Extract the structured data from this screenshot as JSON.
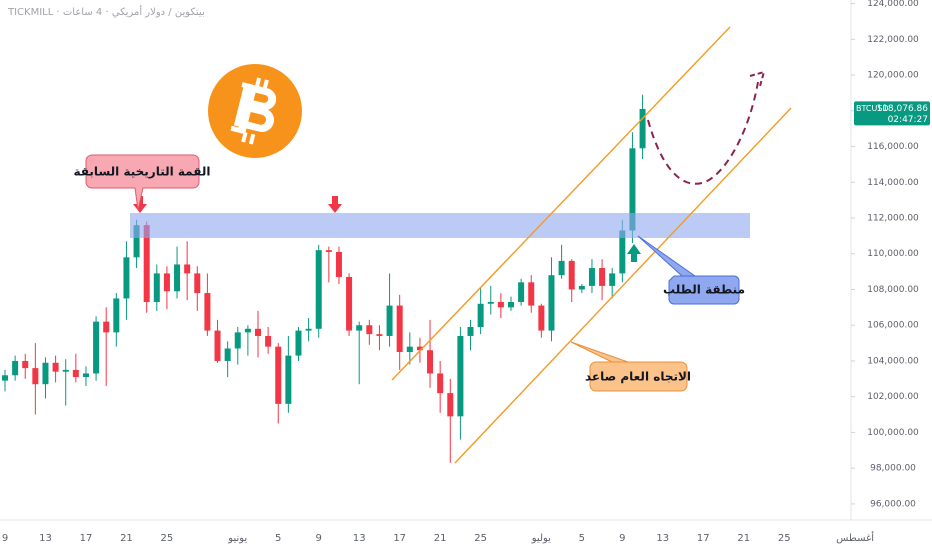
{
  "chart_data": {
    "type": "candlestick",
    "title": "TICKMILL · بيتكوين / دولار أمريكي · 4 ساعات",
    "symbol": "BTCUSD",
    "last_price": {
      "value": 118076.86,
      "label": "118,076.86"
    },
    "countdown": "02:47:27",
    "annotations": [
      "القمة التاريخية السابقة",
      "منطقة الطلب",
      "الاتجاه العام صاعد"
    ],
    "up_color": "#089981",
    "down_color": "#f23645",
    "ylim": [
      95100,
      124200
    ],
    "yticks": [
      {
        "value": 96000,
        "label": "96,000.00"
      },
      {
        "value": 98000,
        "label": "98,000.00"
      },
      {
        "value": 100000,
        "label": "100,000.00"
      },
      {
        "value": 102000,
        "label": "102,000.00"
      },
      {
        "value": 104000,
        "label": "104,000.00"
      },
      {
        "value": 106000,
        "label": "106,000.00"
      },
      {
        "value": 108000,
        "label": "108,000.00"
      },
      {
        "value": 110000,
        "label": "110,000.00"
      },
      {
        "value": 112000,
        "label": "112,000.00"
      },
      {
        "value": 114000,
        "label": "114,000.00"
      },
      {
        "value": 116000,
        "label": "116,000.00"
      },
      {
        "value": 118000,
        "label": "118,000.00"
      },
      {
        "value": 120000,
        "label": "120,000.00"
      },
      {
        "value": 122000,
        "label": "122,000.00"
      },
      {
        "value": 124000,
        "label": "124,000.00"
      }
    ],
    "categories": [
      "9",
      null,
      null,
      null,
      "13",
      null,
      null,
      null,
      "17",
      null,
      null,
      null,
      "21",
      null,
      null,
      null,
      "25",
      null,
      null,
      null,
      null,
      null,
      null,
      "يونيو",
      null,
      null,
      null,
      "5",
      null,
      null,
      null,
      "9",
      null,
      null,
      null,
      "13",
      null,
      null,
      null,
      "17",
      null,
      null,
      null,
      "21",
      null,
      null,
      null,
      "25",
      null,
      null,
      null,
      null,
      null,
      "يوليو",
      null,
      null,
      null,
      "5",
      null,
      null,
      null,
      "9",
      null,
      null,
      null,
      "13",
      null,
      null,
      null,
      "17",
      null,
      null,
      null,
      "21",
      null,
      null,
      null,
      "25",
      null,
      null,
      null,
      null,
      null,
      null,
      "أغسطس"
    ],
    "open": [
      102900,
      103200,
      104000,
      103600,
      102700,
      103900,
      103400,
      103500,
      103100,
      103300,
      106200,
      105600,
      107500,
      109800,
      111600,
      107300,
      108900,
      107900,
      109400,
      108900,
      107800,
      105700,
      104000,
      104700,
      105600,
      105800,
      105400,
      104800,
      101600,
      104300,
      105700,
      105800,
      110200,
      110100,
      108700,
      105700,
      106000,
      105500,
      105400,
      107100,
      104500,
      104800,
      104600,
      103300,
      102200,
      100900,
      105400,
      105900,
      107200,
      107300,
      107000,
      107300,
      108400,
      107100,
      105700,
      108800,
      109600,
      108000,
      108200,
      109200,
      108200,
      108900,
      111300,
      115900,
      null,
      null,
      null,
      null,
      null,
      null,
      null,
      null,
      null,
      null,
      null,
      null,
      null,
      null,
      null,
      null,
      null,
      null,
      null,
      null,
      null
    ],
    "high": [
      103500,
      104300,
      104400,
      105000,
      104200,
      104300,
      104100,
      104400,
      103700,
      106500,
      107000,
      107800,
      110700,
      111900,
      111800,
      109400,
      109300,
      110400,
      110700,
      109300,
      108900,
      106300,
      105100,
      105900,
      106000,
      106800,
      105900,
      105000,
      105400,
      105900,
      106400,
      110500,
      110400,
      110400,
      108900,
      106200,
      106300,
      106000,
      108900,
      107700,
      105600,
      105300,
      106300,
      104000,
      103000,
      105900,
      106300,
      108100,
      108200,
      107800,
      107600,
      108600,
      108800,
      107200,
      109800,
      110500,
      109700,
      108300,
      109700,
      109700,
      109200,
      111900,
      116800,
      118900,
      null,
      null,
      null,
      null,
      null,
      null,
      null,
      null,
      null,
      null,
      null,
      null,
      null,
      null,
      null,
      null,
      null,
      null,
      null,
      null,
      null
    ],
    "low": [
      102300,
      102900,
      103000,
      101000,
      101900,
      102800,
      101500,
      102800,
      102600,
      102900,
      102600,
      104800,
      106300,
      109200,
      106700,
      106800,
      106900,
      107500,
      107400,
      106800,
      105400,
      103900,
      103100,
      103800,
      104300,
      104200,
      104400,
      100500,
      101100,
      104000,
      105100,
      105300,
      108400,
      108300,
      105400,
      102700,
      104900,
      104600,
      104800,
      103500,
      103800,
      103900,
      102500,
      101100,
      98300,
      99600,
      104600,
      105500,
      106600,
      106400,
      106800,
      107100,
      106700,
      105300,
      105100,
      108600,
      107300,
      107800,
      107800,
      107400,
      107500,
      108400,
      110600,
      115300,
      null,
      null,
      null,
      null,
      null,
      null,
      null,
      null,
      null,
      null,
      null,
      null,
      null,
      null,
      null,
      null,
      null,
      null,
      null,
      null,
      null
    ],
    "close": [
      103200,
      104000,
      103600,
      102700,
      103900,
      103400,
      103500,
      103100,
      103300,
      106200,
      105600,
      107500,
      109800,
      111600,
      107300,
      108900,
      107900,
      109400,
      108900,
      107800,
      105700,
      104000,
      104700,
      105600,
      105800,
      105400,
      104800,
      101600,
      104300,
      105700,
      105800,
      110200,
      110100,
      108700,
      105700,
      106000,
      105500,
      105400,
      107100,
      104500,
      104800,
      104600,
      103300,
      102200,
      100900,
      105400,
      105900,
      107200,
      107300,
      107000,
      107300,
      108400,
      107100,
      105700,
      108800,
      109600,
      108000,
      108200,
      109200,
      108200,
      108900,
      111300,
      115900,
      118100,
      null,
      null,
      null,
      null,
      null,
      null,
      null,
      null,
      null,
      null,
      null,
      null,
      null,
      null,
      null,
      null,
      null,
      null,
      null,
      null,
      null
    ]
  }
}
